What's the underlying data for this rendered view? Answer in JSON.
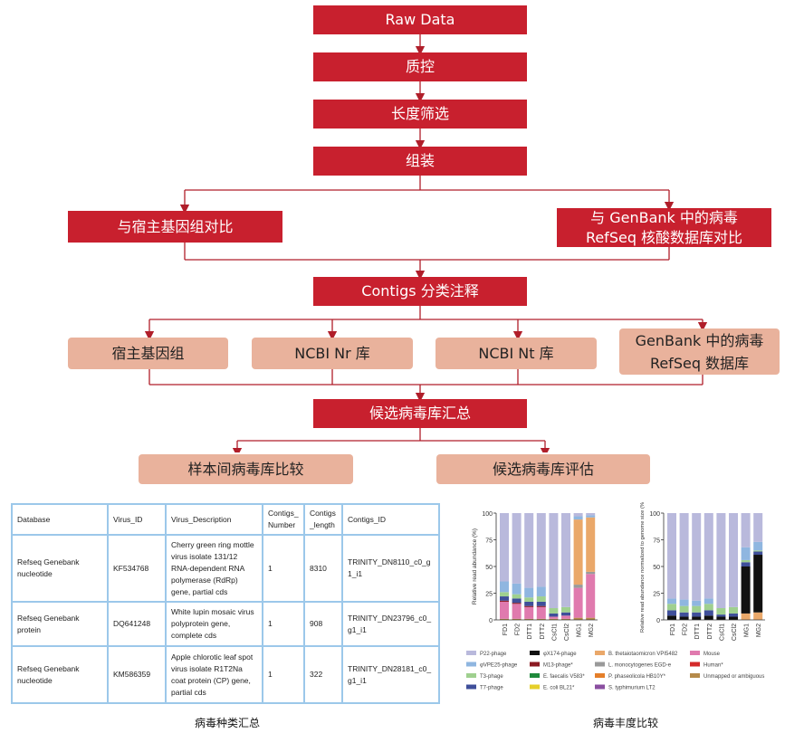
{
  "flow": {
    "raw": "Raw Data",
    "qc": "质控",
    "len": "长度筛选",
    "asm": "组装",
    "host_cmp": "与宿主基因组对比",
    "ref_cmp_1": "与 GenBank 中的病毒",
    "ref_cmp_2": "RefSeq 核酸数据库对比",
    "annot": "Contigs 分类注释",
    "db1": "宿主基因组",
    "db2": "NCBI Nr 库",
    "db3": "NCBI Nt 库",
    "db4_1": "GenBank 中的病毒",
    "db4_2": "RefSeq 数据库",
    "summary": "候选病毒库汇总",
    "cmp": "样本间病毒库比较",
    "eval": "候选病毒库评估",
    "colors": {
      "primary": "#c8202e",
      "secondary": "#e9b29c"
    }
  },
  "table": {
    "headers": [
      "Database",
      "Virus_ID",
      "Virus_Description",
      "Contigs_ Number",
      "Contigs _length",
      "Contigs_ID"
    ],
    "rows": [
      [
        "Refseq Genebank nucleotide",
        "KF534768",
        "Cherry green ring mottle virus isolate 131/12 RNA-dependent RNA polymerase (RdRp) gene, partial cds",
        "1",
        "8310",
        "TRINITY_DN8110_c0_g1_i1"
      ],
      [
        "Refseq Genebank protein",
        "DQ641248",
        "White lupin mosaic virus polyprotein gene, complete cds",
        "1",
        "908",
        "TRINITY_DN23796_c0_g1_i1"
      ],
      [
        "Refseq Genebank nucleotide",
        "KM586359",
        "Apple chlorotic leaf spot virus isolate R1T2Na coat protein (CP) gene, partial cds",
        "1",
        "322",
        "TRINITY_DN28181_c0_g1_i1"
      ]
    ],
    "caption": "病毒种类汇总"
  },
  "chart_caption": "病毒丰度比较",
  "legend": [
    {
      "name": "P22-phage",
      "color": "#b9b9dc"
    },
    {
      "name": "φVPE25-phage",
      "color": "#8fb6e0"
    },
    {
      "name": "T3-phage",
      "color": "#9fd08f"
    },
    {
      "name": "T7-phage",
      "color": "#3f4f9a"
    },
    {
      "name": "φX174-phage",
      "color": "#111111"
    },
    {
      "name": "M13-phage*",
      "color": "#8b1a22"
    },
    {
      "name": "E. faecalis V583*",
      "color": "#1f8a3c"
    },
    {
      "name": "E. coli BL21*",
      "color": "#e6cf2a"
    },
    {
      "name": "B. thetaiotaomicron VPI5482",
      "color": "#eaa86a"
    },
    {
      "name": "L. monocytogenes EGD-e",
      "color": "#9a9a9a"
    },
    {
      "name": "P. phaseolicola HB10Y*",
      "color": "#e57f2a"
    },
    {
      "name": "S. typhimurium LT2",
      "color": "#8a4fa0"
    },
    {
      "name": "Mouse",
      "color": "#e07aae"
    },
    {
      "name": "Human*",
      "color": "#d42a2a"
    },
    {
      "name": "Unmapped or ambiguous",
      "color": "#b58a4a"
    }
  ],
  "chart_data": [
    {
      "type": "bar",
      "stacked": true,
      "ylabel": "Relative read abundance (%)",
      "ylim": [
        0,
        100
      ],
      "yticks": [
        0,
        25,
        50,
        75,
        100
      ],
      "categories": [
        "FD1",
        "FD2",
        "DTT1",
        "DTT2",
        "CsCl1",
        "CsCl2",
        "MG1",
        "MG2"
      ],
      "series": [
        {
          "name": "Unmapped or ambiguous",
          "values": [
            1,
            1,
            1,
            1,
            1,
            1,
            2,
            2
          ]
        },
        {
          "name": "Mouse",
          "values": [
            16,
            14,
            11,
            11,
            2,
            3,
            28,
            41
          ]
        },
        {
          "name": "M13-phage*",
          "values": [
            1,
            1,
            1,
            1,
            0,
            0,
            0,
            0
          ]
        },
        {
          "name": "L. monocytogenes EGD-e",
          "values": [
            0,
            0,
            0,
            0,
            0,
            0,
            3,
            2
          ]
        },
        {
          "name": "B. thetaiotaomicron VPI5482",
          "values": [
            0,
            0,
            0,
            0,
            0,
            0,
            61,
            51
          ]
        },
        {
          "name": "T7-phage",
          "values": [
            4,
            4,
            4,
            4,
            3,
            3,
            0,
            0
          ]
        },
        {
          "name": "T3-phage",
          "values": [
            4,
            4,
            4,
            5,
            5,
            5,
            0,
            0
          ]
        },
        {
          "name": "φVPE25-phage",
          "values": [
            10,
            10,
            9,
            9,
            0,
            0,
            3,
            2
          ]
        },
        {
          "name": "P22-phage",
          "values": [
            64,
            66,
            70,
            69,
            89,
            88,
            3,
            2
          ]
        }
      ]
    },
    {
      "type": "bar",
      "stacked": true,
      "ylabel": "Relative read abundance normalized to genome size (%)",
      "ylim": [
        0,
        100
      ],
      "yticks": [
        0,
        25,
        50,
        75,
        100
      ],
      "categories": [
        "FD1",
        "FD2",
        "DTT1",
        "DTT2",
        "CsCl1",
        "CsCl2",
        "MG1",
        "MG2"
      ],
      "series": [
        {
          "name": "B. thetaiotaomicron VPI5482",
          "values": [
            0,
            0,
            0,
            0,
            0,
            0,
            6,
            7
          ]
        },
        {
          "name": "φX174-phage",
          "values": [
            4,
            3,
            3,
            4,
            3,
            3,
            44,
            54
          ]
        },
        {
          "name": "T7-phage",
          "values": [
            5,
            4,
            4,
            5,
            2,
            3,
            4,
            3
          ]
        },
        {
          "name": "T3-phage",
          "values": [
            6,
            6,
            6,
            6,
            6,
            6,
            2,
            1
          ]
        },
        {
          "name": "φVPE25-phage",
          "values": [
            5,
            6,
            5,
            5,
            0,
            0,
            12,
            8
          ]
        },
        {
          "name": "P22-phage",
          "values": [
            80,
            81,
            82,
            80,
            89,
            88,
            32,
            27
          ]
        }
      ]
    }
  ]
}
